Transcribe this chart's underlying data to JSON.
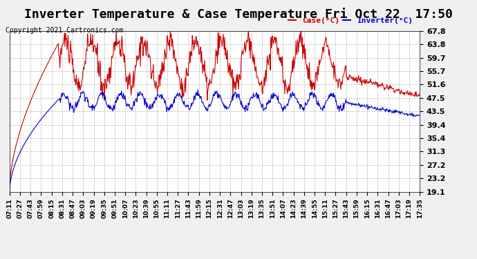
{
  "title": "Inverter Temperature & Case Temperature Fri Oct 22  17:50",
  "copyright": "Copyright 2021 Cartronics.com",
  "legend_case": "Case(°C)",
  "legend_inverter": "Inverter(°C)",
  "yticks": [
    19.1,
    23.2,
    27.2,
    31.3,
    35.4,
    39.4,
    43.5,
    47.5,
    51.6,
    55.7,
    59.7,
    63.8,
    67.8
  ],
  "ylim": [
    19.1,
    67.8
  ],
  "background_color": "#f0f0f0",
  "plot_bg": "#ffffff",
  "case_color": "#cc0000",
  "inverter_color": "#0000cc",
  "title_fontsize": 13,
  "copyright_fontsize": 7,
  "legend_fontsize": 8,
  "ytick_fontsize": 8,
  "xtick_fontsize": 6.5,
  "xtick_labels": [
    "07:11",
    "07:27",
    "07:43",
    "07:59",
    "08:15",
    "08:31",
    "08:47",
    "09:03",
    "09:19",
    "09:35",
    "09:51",
    "10:07",
    "10:23",
    "10:39",
    "10:55",
    "11:11",
    "11:27",
    "11:43",
    "11:59",
    "12:15",
    "12:31",
    "12:47",
    "13:03",
    "13:19",
    "13:35",
    "13:51",
    "14:07",
    "14:23",
    "14:39",
    "14:55",
    "15:11",
    "15:27",
    "15:43",
    "15:59",
    "16:15",
    "16:31",
    "16:47",
    "17:03",
    "17:19",
    "17:35"
  ]
}
